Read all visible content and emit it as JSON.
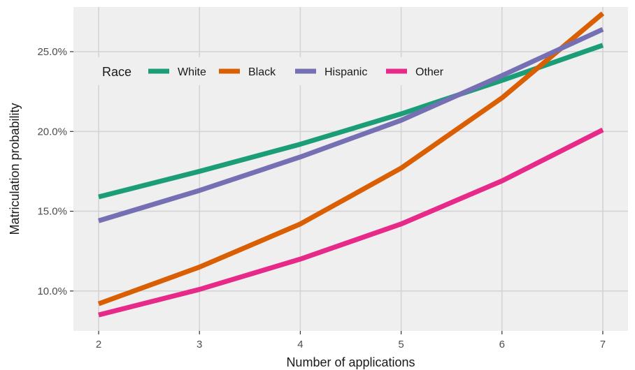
{
  "chart_data": {
    "type": "line",
    "title": "",
    "xlabel": "Number of applications",
    "ylabel": "Matriculation probability",
    "x": [
      2,
      3,
      4,
      5,
      6,
      7
    ],
    "x_tick_labels": [
      "2",
      "3",
      "4",
      "5",
      "6",
      "7"
    ],
    "y_ticks": [
      10,
      15,
      20,
      25
    ],
    "y_tick_labels": [
      "10.0%",
      "15.0%",
      "20.0%",
      "25.0%"
    ],
    "ylim": [
      7.5,
      27.8
    ],
    "xlim": [
      1.75,
      7.25
    ],
    "grid": true,
    "legend": {
      "title": "Race",
      "position": "top-left, inside plot"
    },
    "background_color": "#EFEFEF",
    "grid_color": "#D4D4D4",
    "series": [
      {
        "name": "White",
        "color": "#1B9E77",
        "values": [
          15.9,
          17.5,
          19.2,
          21.1,
          23.2,
          25.4
        ]
      },
      {
        "name": "Black",
        "color": "#D95F02",
        "values": [
          9.2,
          11.5,
          14.2,
          17.7,
          22.1,
          27.4
        ]
      },
      {
        "name": "Hispanic",
        "color": "#7570B3",
        "values": [
          14.4,
          16.3,
          18.4,
          20.7,
          23.5,
          26.4
        ]
      },
      {
        "name": "Other",
        "color": "#E7298A",
        "values": [
          8.5,
          10.1,
          12.0,
          14.2,
          16.9,
          20.1
        ]
      }
    ]
  }
}
